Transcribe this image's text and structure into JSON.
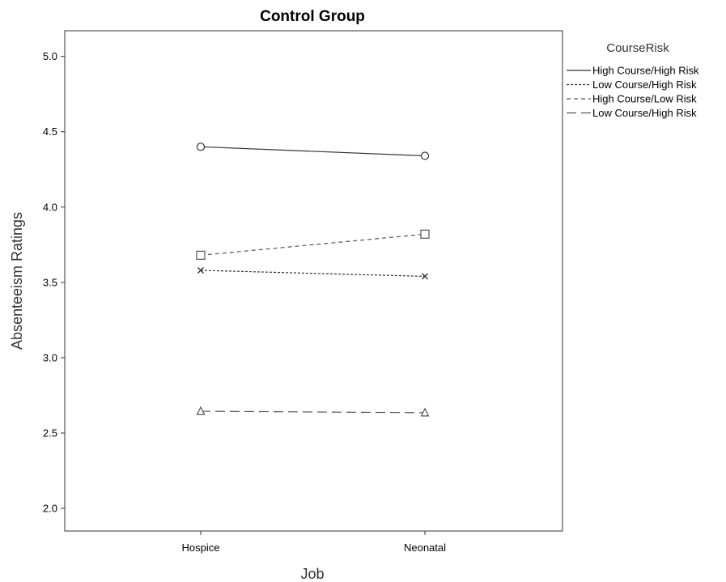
{
  "chart_data": {
    "type": "line",
    "title": "Control Group",
    "xlabel": "Job",
    "ylabel": "Absenteeism Ratings",
    "categories": [
      "Hospice",
      "Neonatal"
    ],
    "yticks": [
      "2.0",
      "2.5",
      "3.0",
      "3.5",
      "4.0",
      "4.5",
      "5.0"
    ],
    "ylim": [
      1.85,
      5.17
    ],
    "grid": false,
    "legend_title": "CourseRisk",
    "legend_position": "top-right outside",
    "series": [
      {
        "name": "High Course/High Risk",
        "values": [
          4.4,
          4.34
        ],
        "marker": "circle",
        "dash": "solid",
        "color": "#333333"
      },
      {
        "name": "Low Course/High Risk",
        "values": [
          3.58,
          3.54
        ],
        "marker": "x",
        "dash": "dotted",
        "color": "#333333"
      },
      {
        "name": "High Course/Low Risk",
        "values": [
          3.68,
          3.82
        ],
        "marker": "square",
        "dash": "short-dash",
        "color": "#555555"
      },
      {
        "name": "Low Course/High Risk",
        "values": [
          2.645,
          2.635
        ],
        "marker": "triangle",
        "dash": "long-dash",
        "color": "#555555"
      }
    ]
  }
}
